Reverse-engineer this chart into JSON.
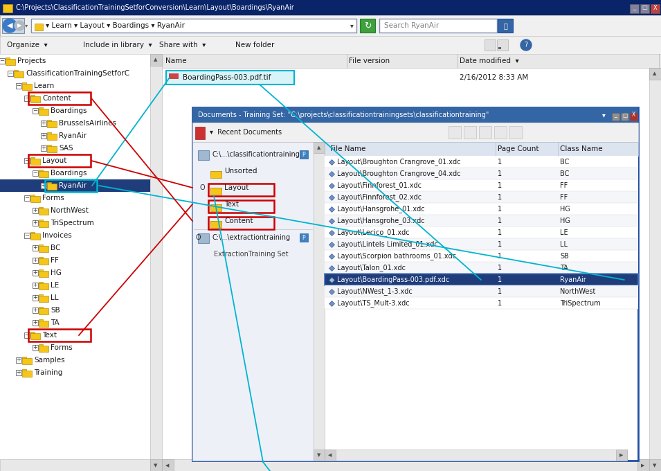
{
  "bg_color": "#c0c0c0",
  "title_bar_color": "#0a246a",
  "title_bar_text": "C:\\Projects\\ClassificationTrainingSetforConversion\\Learn\\Layout\\Boardings\\RyanAir",
  "title_bar_text_color": "#ffffff",
  "breadcrumb_text": "▾ Learn ▾ Layout ▾ Boardings ▾ RyanAir",
  "search_text": "Search RyanAir",
  "toolbar_items": [
    "Organize  ▾",
    "Include in library  ▾",
    "Share with  ▾",
    "New folder"
  ],
  "right_panel_columns": [
    "Name",
    "File version",
    "Date modified  ▾"
  ],
  "right_panel_file": "BoardingPass-003.pdf.tif",
  "right_panel_file_date": "2/16/2012 8:33 AM",
  "file_explorer_tree": [
    {
      "label": "Projects",
      "indent": 0,
      "expanded": true,
      "highlight": null,
      "selected": false
    },
    {
      "label": "ClassificationTrainingSetforC",
      "indent": 1,
      "expanded": true,
      "highlight": null,
      "selected": false
    },
    {
      "label": "Learn",
      "indent": 2,
      "expanded": true,
      "highlight": null,
      "selected": false
    },
    {
      "label": "Content",
      "indent": 3,
      "expanded": true,
      "highlight": "red",
      "selected": false
    },
    {
      "label": "Boardings",
      "indent": 4,
      "expanded": true,
      "highlight": null,
      "selected": false
    },
    {
      "label": "BrusselsAirlines",
      "indent": 5,
      "expanded": false,
      "highlight": null,
      "selected": false
    },
    {
      "label": "RyanAir",
      "indent": 5,
      "expanded": false,
      "highlight": null,
      "selected": false
    },
    {
      "label": "SAS",
      "indent": 5,
      "expanded": false,
      "highlight": null,
      "selected": false
    },
    {
      "label": "Layout",
      "indent": 3,
      "expanded": true,
      "highlight": "red",
      "selected": false
    },
    {
      "label": "Boardings",
      "indent": 4,
      "expanded": true,
      "highlight": null,
      "selected": false
    },
    {
      "label": "RyanAir",
      "indent": 5,
      "expanded": false,
      "highlight": "cyan",
      "selected": true
    },
    {
      "label": "Forms",
      "indent": 3,
      "expanded": true,
      "highlight": null,
      "selected": false
    },
    {
      "label": "NorthWest",
      "indent": 4,
      "expanded": false,
      "highlight": null,
      "selected": false
    },
    {
      "label": "TriSpectrum",
      "indent": 4,
      "expanded": false,
      "highlight": null,
      "selected": false
    },
    {
      "label": "Invoices",
      "indent": 3,
      "expanded": true,
      "highlight": null,
      "selected": false
    },
    {
      "label": "BC",
      "indent": 4,
      "expanded": false,
      "highlight": null,
      "selected": false
    },
    {
      "label": "FF",
      "indent": 4,
      "expanded": false,
      "highlight": null,
      "selected": false
    },
    {
      "label": "HG",
      "indent": 4,
      "expanded": false,
      "highlight": null,
      "selected": false
    },
    {
      "label": "LE",
      "indent": 4,
      "expanded": false,
      "highlight": null,
      "selected": false
    },
    {
      "label": "LL",
      "indent": 4,
      "expanded": false,
      "highlight": null,
      "selected": false
    },
    {
      "label": "SB",
      "indent": 4,
      "expanded": false,
      "highlight": null,
      "selected": false
    },
    {
      "label": "TA",
      "indent": 4,
      "expanded": false,
      "highlight": null,
      "selected": false
    },
    {
      "label": "Text",
      "indent": 3,
      "expanded": true,
      "highlight": "red",
      "selected": false
    },
    {
      "label": "Forms",
      "indent": 4,
      "expanded": false,
      "highlight": null,
      "selected": false
    },
    {
      "label": "Samples",
      "indent": 2,
      "expanded": false,
      "highlight": null,
      "selected": false
    },
    {
      "label": "Training",
      "indent": 2,
      "expanded": false,
      "highlight": null,
      "selected": false
    }
  ],
  "inner_window_title": "Documents - Training Set: \"C:\\projects\\classificationtrainingsets\\classificationtraining\"",
  "inner_window_title_bg": "#3465a4",
  "inner_window_title_color": "#ffffff",
  "inner_tree": [
    {
      "label": "C:\\...\\classificationtraining",
      "indent": 0,
      "type": "doc_set"
    },
    {
      "label": "Unsorted",
      "indent": 1,
      "type": "folder",
      "highlight": null
    },
    {
      "label": "Layout",
      "indent": 1,
      "type": "folder",
      "highlight": "red",
      "bullet": "O"
    },
    {
      "label": "Text",
      "indent": 1,
      "type": "folder",
      "highlight": "red"
    },
    {
      "label": "Content",
      "indent": 1,
      "type": "folder",
      "highlight": "red"
    },
    {
      "label": "C:\\...\\extractiontraining",
      "indent": 0,
      "type": "doc_set"
    },
    {
      "label": "ExtractionTraining Set",
      "indent": 1,
      "type": "text",
      "highlight": null
    }
  ],
  "doc_table_columns": [
    "File Name",
    "Page Count",
    "Class Name"
  ],
  "doc_table_rows": [
    [
      "Layout\\Broughton Crangrove_01.xdc",
      "1",
      "BC"
    ],
    [
      "Layout\\Broughton Crangrove_04.xdc",
      "1",
      "BC"
    ],
    [
      "Layout\\Finnforest_01.xdc",
      "1",
      "FF"
    ],
    [
      "Layout\\Finnforest_02.xdc",
      "1",
      "FF"
    ],
    [
      "Layout\\Hansgrohe_01.xdc",
      "1",
      "HG"
    ],
    [
      "Layout\\Hansgrohe_03.xdc",
      "1",
      "HG"
    ],
    [
      "Layout\\Lecico_01.xdc",
      "1",
      "LE"
    ],
    [
      "Layout\\Lintels Limited_01.xdc",
      "1",
      "LL"
    ],
    [
      "Layout\\Scorpion bathrooms_01.xdc",
      "1",
      "SB"
    ],
    [
      "Layout\\Talon_01.xdc",
      "1",
      "TA"
    ],
    [
      "Layout\\BoardingPass-003.pdf.xdc",
      "1",
      "RyanAir"
    ],
    [
      "Layout\\NWest_1-3.xdc",
      "1",
      "NorthWest"
    ],
    [
      "Layout\\TS_Mult-3.xdc",
      "1",
      "TriSpectrum"
    ]
  ],
  "selected_row_idx": 10,
  "selected_row_bg": "#1f3d7a",
  "selected_row_color": "#ffffff",
  "cyan_color": "#00b4d0",
  "red_color": "#cc0000",
  "folder_color": "#f5c518",
  "folder_edge": "#b89010"
}
